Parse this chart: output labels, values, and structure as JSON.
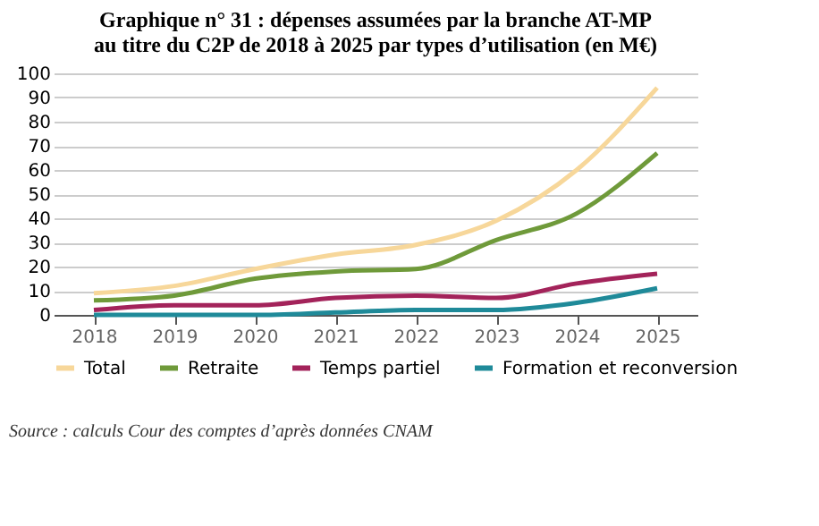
{
  "chart_data": {
    "type": "line",
    "title": [
      "Graphique n° 31 : dépenses assumées par la branche AT-MP",
      "au titre du C2P de 2018 à 2025 par types d’utilisation (en M€)"
    ],
    "categories": [
      "2018",
      "2019",
      "2020",
      "2021",
      "2022",
      "2023",
      "2024",
      "2025"
    ],
    "series": [
      {
        "name": "Total",
        "color": "#f7d79a",
        "values": [
          9,
          12,
          19,
          25,
          29,
          39,
          60,
          94
        ]
      },
      {
        "name": "Retraite",
        "color": "#6f9a3a",
        "values": [
          6,
          8,
          15,
          18,
          19,
          31,
          42,
          67
        ]
      },
      {
        "name": "Temps partiel",
        "color": "#a3235a",
        "values": [
          2,
          4,
          4,
          7,
          8,
          7,
          13,
          17
        ]
      },
      {
        "name": "Formation et reconversion",
        "color": "#1f8a99",
        "values": [
          0,
          0,
          0,
          1,
          2,
          2,
          5,
          11
        ]
      }
    ],
    "ylim": [
      0,
      100
    ],
    "yticks": [
      0,
      10,
      20,
      30,
      40,
      50,
      60,
      70,
      80,
      90,
      100
    ],
    "grid": "y",
    "legend": "bottom",
    "marker": "none",
    "line_style": "solid",
    "annotations": [
      "Source : calculs Cour des comptes d’après données CNAM"
    ]
  }
}
